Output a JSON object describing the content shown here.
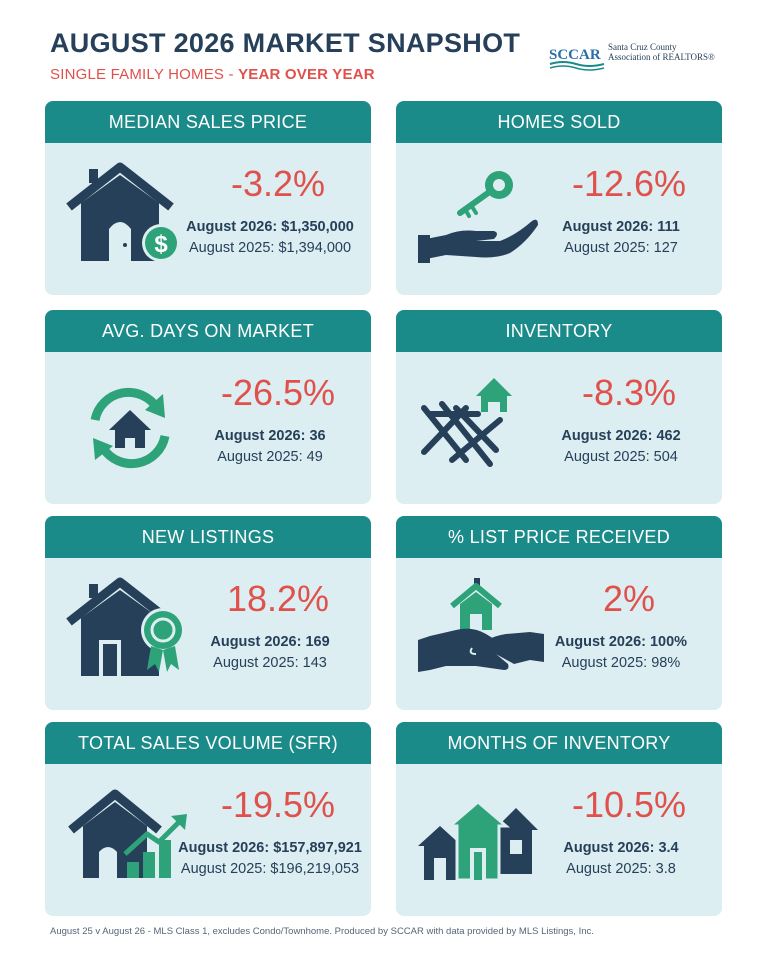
{
  "header": {
    "title": "AUGUST 2026 MARKET SNAPSHOT",
    "subtitle_prefix": "SINGLE FAMILY HOMES -",
    "subtitle_emphasis": "YEAR OVER YEAR"
  },
  "logo": {
    "mark": "SCCAR",
    "line1": "Santa Cruz County",
    "line2": "Association of REALTORS®"
  },
  "colors": {
    "navy": "#27405a",
    "teal": "#1b8b8a",
    "green": "#2ea37a",
    "red": "#e0514c",
    "card_bg": "#dceef1"
  },
  "cards": [
    {
      "title": "MEDIAN SALES PRICE",
      "change": "-3.2%",
      "current": "August 2026: $1,350,000",
      "previous": "August 2025: $1,394,000",
      "icon": "house-dollar-icon"
    },
    {
      "title": "HOMES SOLD",
      "change": "-12.6%",
      "current": "August 2026: 111",
      "previous": "August 2025: 127",
      "icon": "key-hand-icon"
    },
    {
      "title": "AVG. DAYS ON MARKET",
      "change": "-26.5%",
      "current": "August 2026: 36",
      "previous": "August 2025: 49",
      "icon": "house-cycle-icon"
    },
    {
      "title": "INVENTORY",
      "change": "-8.3%",
      "current": "August 2026: 462",
      "previous": "August 2025: 504",
      "icon": "house-frame-icon"
    },
    {
      "title": "NEW LISTINGS",
      "change": "18.2%",
      "current": "August 2026: 169",
      "previous": "August 2025: 143",
      "icon": "house-badge-icon"
    },
    {
      "title": "% LIST PRICE RECEIVED",
      "change": "2%",
      "current": "August 2026: 100%",
      "previous": "August 2025: 98%",
      "icon": "handshake-house-icon"
    },
    {
      "title": "TOTAL SALES VOLUME (SFR)",
      "change": "-19.5%",
      "current": "August 2026: $157,897,921",
      "previous": "August 2025: $196,219,053",
      "icon": "house-chart-icon"
    },
    {
      "title": "MONTHS OF INVENTORY",
      "change": "-10.5%",
      "current": "August 2026: 3.4",
      "previous": "August 2025: 3.8",
      "icon": "three-houses-icon"
    }
  ],
  "footer": "August 25  v  August 26 - MLS Class 1, excludes Condo/Townhome. Produced by SCCAR with data provided by MLS Listings, Inc."
}
